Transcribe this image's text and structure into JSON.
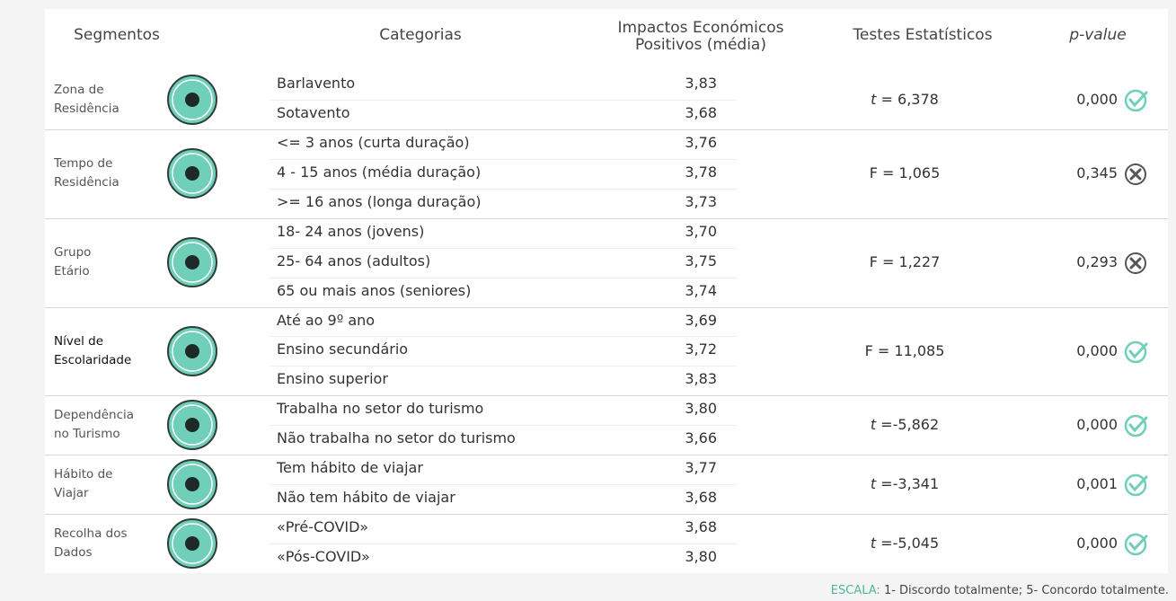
{
  "table": {
    "headers": [
      [
        "Segmentos"
      ],
      [
        "Categorias"
      ],
      [
        "Impactos Económicos",
        "Positivos (média)"
      ],
      [
        "Testes Estatísticos"
      ],
      [
        "p-value"
      ]
    ],
    "groups": [
      {
        "segment": [
          "Zona de",
          "Residência"
        ],
        "categories": [
          {
            "name": "Barlavento",
            "value": "3,83"
          },
          {
            "name": "Sotavento",
            "value": "3,68"
          }
        ],
        "test_symbol": "t",
        "test_italic": true,
        "test_value": " = 6,378",
        "p_value": "0,000",
        "significant": true
      },
      {
        "segment": [
          "Tempo de",
          "Residência"
        ],
        "categories": [
          {
            "name": "<= 3 anos (curta duração)",
            "value": "3,76"
          },
          {
            "name": "4 - 15 anos (média duração)",
            "value": "3,78"
          },
          {
            "name": ">= 16 anos (longa duração)",
            "value": "3,73"
          }
        ],
        "test_symbol": "F",
        "test_italic": false,
        "test_value": " = 1,065",
        "p_value": "0,345",
        "significant": false
      },
      {
        "segment": [
          "Grupo",
          "Etário"
        ],
        "categories": [
          {
            "name": "18- 24 anos (jovens)",
            "value": "3,70"
          },
          {
            "name": "25- 64 anos (adultos)",
            "value": "3,75"
          },
          {
            "name": "65 ou mais anos (seniores)",
            "value": "3,74"
          }
        ],
        "test_symbol": "F",
        "test_italic": false,
        "test_value": " = 1,227",
        "p_value": "0,293",
        "significant": false
      },
      {
        "segment": [
          "Nível de",
          "Escolaridade"
        ],
        "categories": [
          {
            "name": "Até ao 9º ano",
            "value": "3,69"
          },
          {
            "name": "Ensino secundário",
            "value": "3,72"
          },
          {
            "name": "Ensino superior",
            "value": "3,83"
          }
        ],
        "test_symbol": "F",
        "test_italic": false,
        "test_value": " = 11,085",
        "p_value": "0,000",
        "significant": true
      },
      {
        "segment": [
          "Dependência",
          "no Turismo"
        ],
        "categories": [
          {
            "name": "Trabalha no setor do turismo",
            "value": "3,80"
          },
          {
            "name": "Não trabalha no setor do turismo",
            "value": "3,66"
          }
        ],
        "test_symbol": "t",
        "test_italic": true,
        "test_value": " =-5,862",
        "p_value": "0,000",
        "significant": true
      },
      {
        "segment": [
          "Hábito de",
          "Viajar"
        ],
        "categories": [
          {
            "name": "Tem hábito de viajar",
            "value": "3,77"
          },
          {
            "name": "Não tem hábito de viajar",
            "value": "3,68"
          }
        ],
        "test_symbol": "t",
        "test_italic": true,
        "test_value": " =-3,341",
        "p_value": "0,001",
        "significant": true
      },
      {
        "segment": [
          "Recolha dos",
          "Dados"
        ],
        "categories": [
          {
            "name": "«Pré-COVID»",
            "value": "3,68"
          },
          {
            "name": "«Pós-COVID»",
            "value": "3,80"
          }
        ],
        "test_symbol": "t",
        "test_italic": true,
        "test_value": " =-5,045",
        "p_value": "0,000",
        "significant": true
      }
    ],
    "scale_label": "ESCALA:",
    "scale_text": " 1- Discordo totalmente; 5- Concordo totalmente."
  }
}
